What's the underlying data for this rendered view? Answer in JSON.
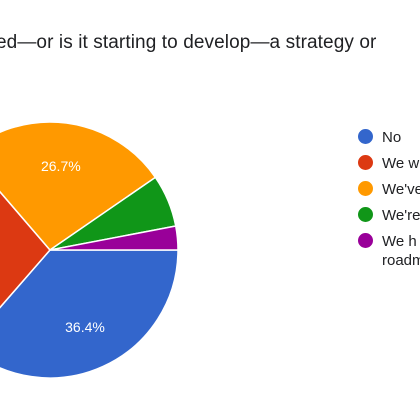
{
  "chart_data": {
    "type": "pie",
    "title": "ed—or is it starting to develop—a strategy or",
    "slices": [
      {
        "label": "No",
        "value": 36.4,
        "display": "36.4%",
        "color": "#3366cc"
      },
      {
        "label": "We w",
        "value": 27.3,
        "display": "",
        "color": "#dc3912"
      },
      {
        "label": "We've",
        "value": 26.7,
        "display": "26.7%",
        "color": "#ff9900"
      },
      {
        "label": "We're",
        "value": 6.6,
        "display": "",
        "color": "#109618"
      },
      {
        "label": "We h roadm",
        "value": 3.0,
        "display": "",
        "color": "#990099"
      }
    ],
    "legend_position": "right"
  }
}
